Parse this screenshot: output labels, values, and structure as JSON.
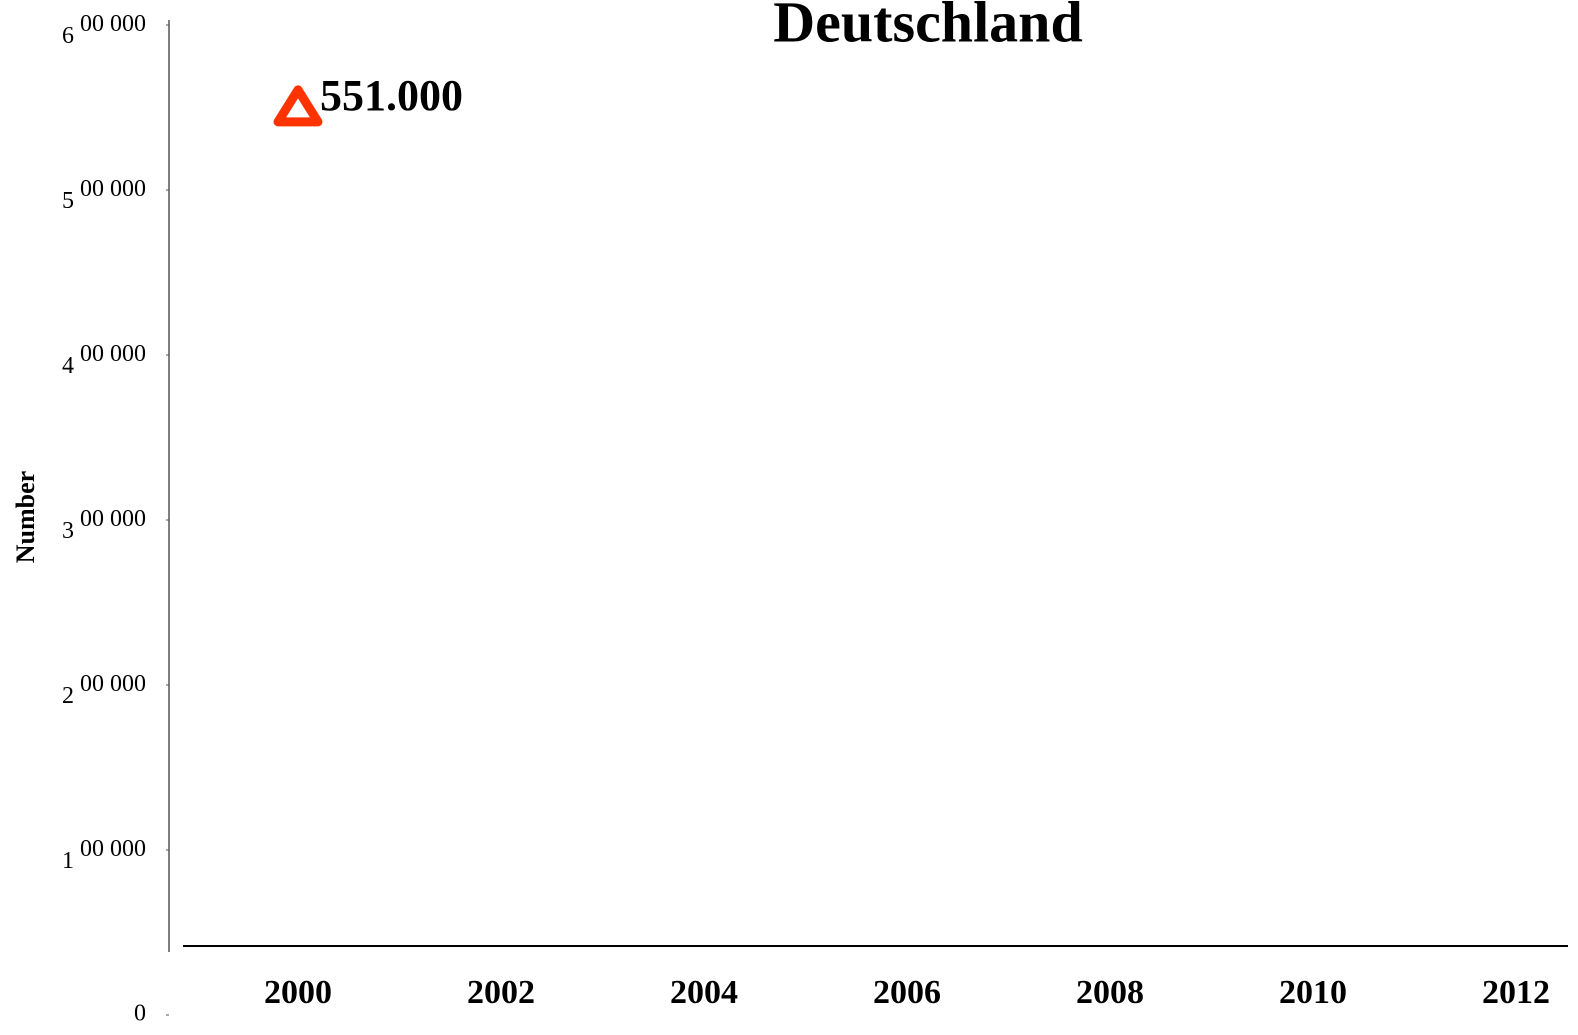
{
  "chart_data": {
    "type": "line",
    "title": "Deutschland",
    "y_label": "Number",
    "x": [
      2000
    ],
    "xlim": [
      1997.3,
      2012.5
    ],
    "xticks": [
      2000,
      2002,
      2004,
      2006,
      2008,
      2010,
      2012
    ],
    "series": [
      {
        "name": "Deutschland",
        "color": "#ff3300",
        "marker": "triangle",
        "values": [
          551000
        ],
        "value_labels": [
          "551.000"
        ]
      }
    ],
    "ylim": [
      0,
      600000
    ],
    "yticks": [
      {
        "value": 0,
        "label": "0"
      },
      {
        "value": 100000,
        "label": "1 00 000"
      },
      {
        "value": 200000,
        "label": "2 00 000"
      },
      {
        "value": 300000,
        "label": "3 00 000"
      },
      {
        "value": 400000,
        "label": "4 00 000"
      },
      {
        "value": 500000,
        "label": "5 00 000"
      },
      {
        "value": 600000,
        "label": "6 00 000"
      }
    ],
    "grid": false
  }
}
